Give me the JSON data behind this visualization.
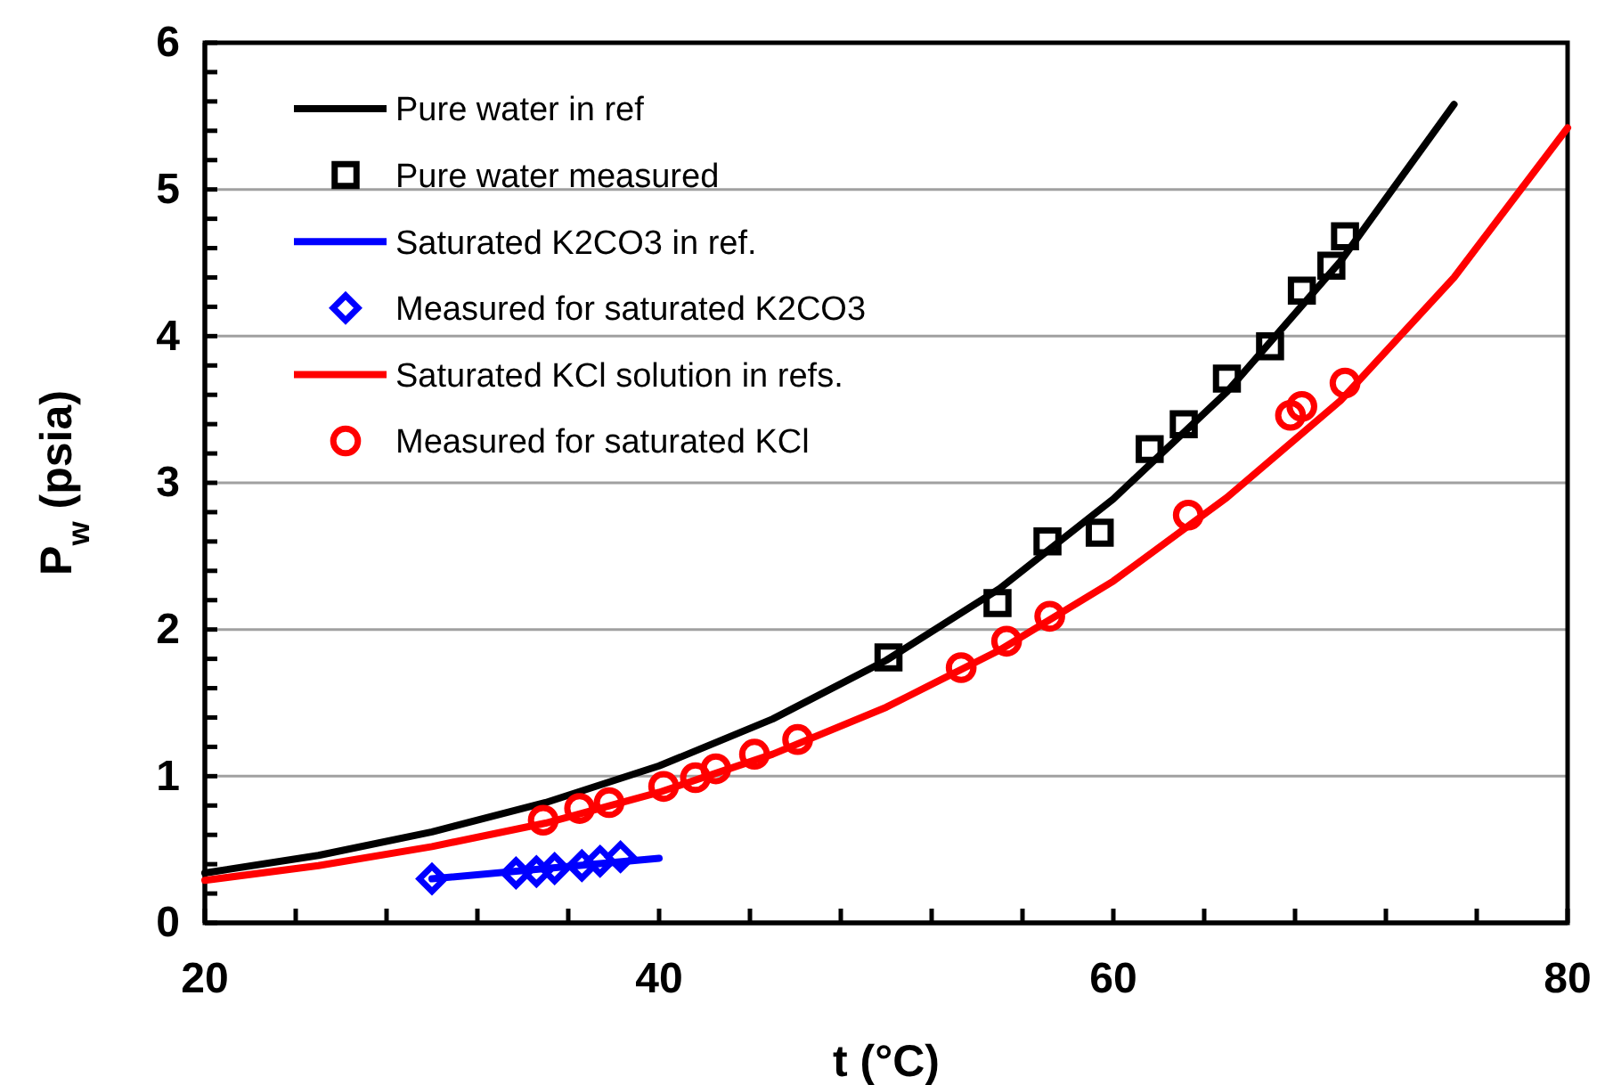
{
  "chart_data": {
    "type": "line",
    "xlabel": "t (°C)",
    "ylabel": "P$_{w}$ (psia)",
    "xlim": [
      20,
      80
    ],
    "xticks": [
      20,
      {
        "value": 24,
        "label": null
      },
      {
        "value": 28,
        "label": null
      },
      {
        "value": 32,
        "label": null
      },
      {
        "value": 36,
        "label": null
      },
      40,
      {
        "value": 44,
        "label": null
      },
      {
        "value": 48,
        "label": null
      },
      {
        "value": 52,
        "label": null
      },
      {
        "value": 56,
        "label": null
      },
      60,
      {
        "value": 64,
        "label": null
      },
      {
        "value": 68,
        "label": null
      },
      {
        "value": 72,
        "label": null
      },
      {
        "value": 76,
        "label": null
      },
      80
    ],
    "ylim": [
      0,
      6
    ],
    "yticks": [
      0,
      {
        "value": 0.2,
        "label": null
      },
      {
        "value": 0.4,
        "label": null
      },
      {
        "value": 0.6,
        "label": null
      },
      {
        "value": 0.8,
        "label": null
      },
      1,
      {
        "value": 1.2,
        "label": null
      },
      {
        "value": 1.4,
        "label": null
      },
      {
        "value": 1.6,
        "label": null
      },
      {
        "value": 1.8,
        "label": null
      },
      2,
      {
        "value": 2.2,
        "label": null
      },
      {
        "value": 2.4,
        "label": null
      },
      {
        "value": 2.6,
        "label": null
      },
      {
        "value": 2.8,
        "label": null
      },
      3,
      {
        "value": 3.2,
        "label": null
      },
      {
        "value": 3.4,
        "label": null
      },
      {
        "value": 3.6,
        "label": null
      },
      {
        "value": 3.8,
        "label": null
      },
      4,
      {
        "value": 4.2,
        "label": null
      },
      {
        "value": 4.4,
        "label": null
      },
      {
        "value": 4.6,
        "label": null
      },
      {
        "value": 4.8,
        "label": null
      },
      5,
      {
        "value": 5.2,
        "label": null
      },
      {
        "value": 5.4,
        "label": null
      },
      {
        "value": 5.6,
        "label": null
      },
      {
        "value": 5.8,
        "label": null
      },
      6
    ],
    "grid": "y",
    "legend": "top left",
    "series": [
      {
        "name": "Pure water in ref",
        "type": "line",
        "color": "#000000",
        "x": [
          20,
          25,
          30,
          35,
          40,
          45,
          50,
          55,
          60,
          65,
          70,
          75
        ],
        "values": [
          0.34,
          0.46,
          0.62,
          0.82,
          1.07,
          1.39,
          1.79,
          2.28,
          2.89,
          3.62,
          4.51,
          5.58
        ]
      },
      {
        "name": "Pure water measured",
        "type": "scatter",
        "marker": "square",
        "color": "#000000",
        "x": [
          50.1,
          54.9,
          57.1,
          59.4,
          61.6,
          63.1,
          65.0,
          66.9,
          68.3,
          69.6,
          70.2
        ],
        "values": [
          1.81,
          2.18,
          2.6,
          2.66,
          3.23,
          3.4,
          3.71,
          3.93,
          4.31,
          4.48,
          4.68
        ]
      },
      {
        "name": "Saturated K2CO3 in ref.",
        "type": "line",
        "color": "#0000ff",
        "x": [
          30,
          35,
          40
        ],
        "values": [
          0.3,
          0.37,
          0.44
        ]
      },
      {
        "name": "Measured for saturated K2CO3",
        "type": "scatter",
        "marker": "diamond",
        "color": "#0000ff",
        "x": [
          30,
          33.7,
          34.6,
          35.4,
          36.6,
          37.4,
          38.3
        ],
        "values": [
          0.3,
          0.34,
          0.35,
          0.37,
          0.39,
          0.42,
          0.45
        ]
      },
      {
        "name": "Saturated KCl solution in refs.",
        "type": "line",
        "color": "#ff0000",
        "x": [
          20,
          25,
          30,
          35,
          40,
          45,
          50,
          55,
          60,
          65,
          70,
          75,
          80
        ],
        "values": [
          0.29,
          0.39,
          0.52,
          0.68,
          0.89,
          1.15,
          1.47,
          1.86,
          2.33,
          2.9,
          3.56,
          4.4,
          5.42
        ]
      },
      {
        "name": "Measured for saturated KCl",
        "type": "scatter",
        "marker": "circle",
        "color": "#ff0000",
        "x": [
          34.9,
          36.5,
          37.8,
          40.2,
          41.6,
          42.5,
          44.2,
          46.1,
          53.3,
          55.3,
          57.2,
          63.3,
          67.8,
          68.3,
          70.2
        ],
        "values": [
          0.7,
          0.78,
          0.82,
          0.93,
          0.99,
          1.05,
          1.15,
          1.25,
          1.74,
          1.92,
          2.09,
          2.78,
          3.46,
          3.52,
          3.68
        ]
      }
    ]
  }
}
